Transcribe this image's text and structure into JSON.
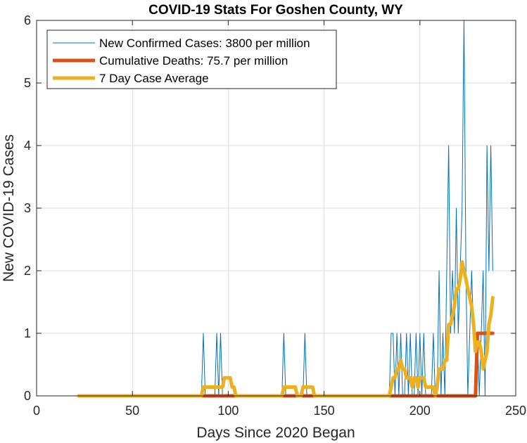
{
  "chart_data": {
    "type": "line",
    "title": "COVID-19 Stats For Goshen County, WY",
    "xlabel": "Days Since 2020 Began",
    "ylabel": "New COVID-19 Cases",
    "xlim": [
      0,
      250
    ],
    "ylim": [
      0,
      6
    ],
    "xticks": [
      0,
      50,
      100,
      150,
      200,
      250
    ],
    "yticks": [
      0,
      1,
      2,
      3,
      4,
      5,
      6
    ],
    "grid": true,
    "legend_position": "top-left",
    "series": [
      {
        "name": "New Confirmed Cases: 3800 per million",
        "color": "#0072BD",
        "style": "thin",
        "x": [
          22,
          86,
          87,
          88,
          93,
          94,
          95,
          96,
          97,
          98,
          128,
          129,
          130,
          139,
          140,
          141,
          184,
          185,
          186,
          187,
          188,
          189,
          190,
          191,
          192,
          193,
          194,
          195,
          196,
          197,
          198,
          199,
          200,
          201,
          202,
          203,
          204,
          205,
          206,
          207,
          208,
          209,
          210,
          211,
          212,
          213,
          214,
          215,
          216,
          217,
          218,
          219,
          220,
          221,
          222,
          223,
          224,
          225,
          226,
          227,
          228,
          229,
          230,
          231,
          232,
          233,
          234,
          235,
          236,
          237,
          238
        ],
        "y": [
          0,
          0,
          1,
          0,
          0,
          1,
          0,
          1,
          0,
          0,
          0,
          1,
          0,
          0,
          1,
          0,
          0,
          1,
          1,
          0,
          1,
          0,
          1,
          0,
          0,
          1,
          0,
          1,
          0,
          0,
          1,
          0,
          1,
          0,
          1,
          0,
          0,
          0,
          0,
          1,
          0,
          0,
          2,
          0,
          1,
          0,
          2,
          4,
          1,
          2,
          1,
          3,
          1,
          2,
          3,
          6,
          2,
          0,
          1,
          2,
          1,
          1,
          1,
          0,
          1,
          2,
          0,
          4,
          2,
          4,
          2
        ]
      },
      {
        "name": "Cumulative Deaths: 75.7 per million",
        "color": "#D95319",
        "style": "thick",
        "x": [
          22,
          229,
          230,
          238
        ],
        "y": [
          0,
          0,
          1,
          1
        ]
      },
      {
        "name": "7 Day Case Average",
        "color": "#EDB120",
        "style": "thick",
        "x": [
          22,
          86,
          87,
          88,
          93,
          94,
          97,
          98,
          100,
          101,
          102,
          103,
          104,
          128,
          129,
          130,
          134,
          135,
          136,
          138,
          139,
          140,
          144,
          145,
          146,
          184,
          185,
          186,
          187,
          188,
          189,
          190,
          191,
          192,
          193,
          194,
          195,
          196,
          197,
          198,
          199,
          200,
          201,
          202,
          203,
          204,
          205,
          206,
          207,
          208,
          209,
          210,
          211,
          212,
          213,
          214,
          215,
          216,
          217,
          218,
          219,
          220,
          221,
          222,
          223,
          224,
          225,
          226,
          227,
          228,
          229,
          230,
          231,
          232,
          233,
          234,
          235,
          236,
          237,
          238
        ],
        "y": [
          0,
          0,
          0.14,
          0.14,
          0.14,
          0.14,
          0.14,
          0.29,
          0.29,
          0.29,
          0.14,
          0.14,
          0,
          0,
          0.14,
          0.14,
          0.14,
          0.14,
          0,
          0,
          0.14,
          0.14,
          0.14,
          0,
          0,
          0,
          0.14,
          0.29,
          0.29,
          0.43,
          0.43,
          0.57,
          0.43,
          0.43,
          0.29,
          0.29,
          0.29,
          0.14,
          0.29,
          0.29,
          0.14,
          0.29,
          0.29,
          0.29,
          0.14,
          0.14,
          0.14,
          0.14,
          0.14,
          0,
          0.14,
          0.43,
          0.43,
          0.43,
          0.57,
          0.57,
          1.14,
          1.14,
          1.29,
          1.43,
          1.71,
          1.71,
          1.86,
          2.14,
          2.0,
          1.86,
          1.71,
          1.57,
          1.43,
          1.14,
          0.71,
          0.86,
          0.86,
          0.71,
          0.43,
          0.57,
          0.71,
          1.14,
          1.29,
          1.57
        ]
      }
    ]
  }
}
